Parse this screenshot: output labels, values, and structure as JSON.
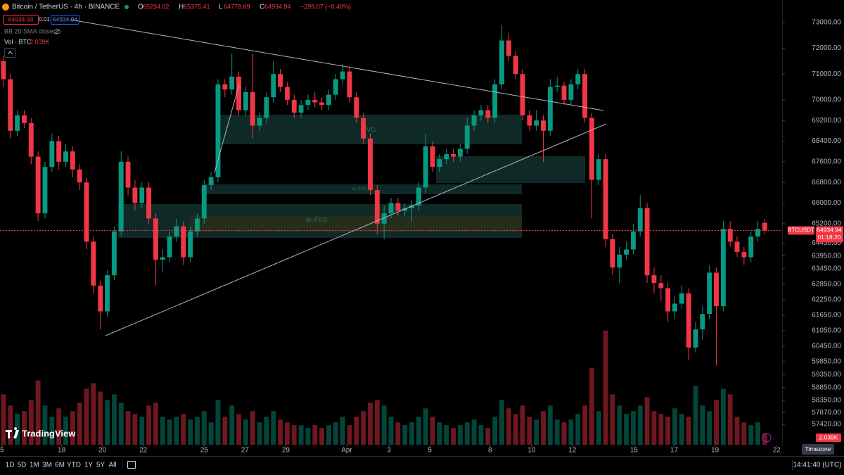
{
  "header": {
    "symbol": "Bitcoin / TetherUS · 4h · BINANCE",
    "ohlc_prefixes": [
      "O",
      "H",
      "L",
      "C"
    ],
    "change": "−299.07 (−0.46%)",
    "bid": "64934.93",
    "spread": "0.01",
    "ask": "64934.94",
    "indicator": "BB 20 SMA close 2",
    "volume_title": "Vol · BTC"
  },
  "price_tag": {
    "symbol": "BTCUSDT",
    "countdown": "01:18:20"
  },
  "logo": "TradingView",
  "toolbar": {
    "ranges": [
      "1D",
      "5D",
      "1M",
      "3M",
      "6M",
      "YTD",
      "1Y",
      "5Y",
      "All"
    ],
    "clock": "14:41:40 (UTC)",
    "tooltip": "Timezone"
  },
  "chart_data": {
    "type": "candlestick",
    "up_color": "#089981",
    "down_color": "#f23645",
    "ylim": [
      56630,
      73870
    ],
    "yticks": [
      {
        "value": 73000,
        "label": "73000.00"
      },
      {
        "value": 72000,
        "label": "72000.00"
      },
      {
        "value": 71000,
        "label": "71000.00"
      },
      {
        "value": 70000,
        "label": "70000.00"
      },
      {
        "value": 69200,
        "label": "69200.00"
      },
      {
        "value": 68400,
        "label": "68400.00"
      },
      {
        "value": 67600,
        "label": "67600.00"
      },
      {
        "value": 66800,
        "label": "66800.00"
      },
      {
        "value": 66000,
        "label": "66000.00"
      },
      {
        "value": 65200,
        "label": "65200.00"
      },
      {
        "value": 64450,
        "label": "64450.00"
      },
      {
        "value": 63950,
        "label": "63950.00"
      },
      {
        "value": 63450,
        "label": "63450.00"
      },
      {
        "value": 62850,
        "label": "62850.00"
      },
      {
        "value": 62250,
        "label": "62250.00"
      },
      {
        "value": 61650,
        "label": "61650.00"
      },
      {
        "value": 61050,
        "label": "61050.00"
      },
      {
        "value": 60450,
        "label": "60450.00"
      },
      {
        "value": 59850,
        "label": "59850.00"
      },
      {
        "value": 59350,
        "label": "59350.00"
      },
      {
        "value": 58850,
        "label": "58850.00"
      },
      {
        "value": 58350,
        "label": "58350.00"
      },
      {
        "value": 57870,
        "label": "57870.00"
      },
      {
        "value": 57420,
        "label": "57420.00"
      }
    ],
    "xlim": [
      -0.5,
      112.5
    ],
    "xticks": [
      {
        "value": -0.2,
        "label": "5"
      },
      {
        "value": 8.4,
        "label": "18"
      },
      {
        "value": 14.3,
        "label": "20"
      },
      {
        "value": 20.2,
        "label": "22"
      },
      {
        "value": 29.0,
        "label": "25"
      },
      {
        "value": 34.9,
        "label": "27"
      },
      {
        "value": 40.8,
        "label": "29"
      },
      {
        "value": 49.6,
        "label": "Apr"
      },
      {
        "value": 55.7,
        "label": "3"
      },
      {
        "value": 61.6,
        "label": "5"
      },
      {
        "value": 70.3,
        "label": "8"
      },
      {
        "value": 76.3,
        "label": "10"
      },
      {
        "value": 82.2,
        "label": "12"
      },
      {
        "value": 91.1,
        "label": "15"
      },
      {
        "value": 96.9,
        "label": "17"
      },
      {
        "value": 102.8,
        "label": "19"
      },
      {
        "value": 111.7,
        "label": "22"
      }
    ],
    "volume_lim": [
      0,
      22000
    ],
    "last_volume_label": "2.039K",
    "annotations": [
      "FVG",
      "4h FVG",
      "4h FVG"
    ],
    "ohlc": [
      [
        71500,
        71700,
        70500,
        70800
      ],
      [
        70800,
        71000,
        68500,
        68800
      ],
      [
        68800,
        69600,
        68600,
        69400
      ],
      [
        69400,
        69600,
        68900,
        69100
      ],
      [
        69100,
        69300,
        67500,
        67800
      ],
      [
        67800,
        68000,
        65300,
        65600
      ],
      [
        65600,
        67600,
        65400,
        67400
      ],
      [
        67400,
        68700,
        67200,
        68400
      ],
      [
        68400,
        68600,
        67300,
        67600
      ],
      [
        67600,
        68300,
        67400,
        68000
      ],
      [
        68000,
        68200,
        67000,
        67300
      ],
      [
        67300,
        67500,
        66500,
        66800
      ],
      [
        66800,
        67000,
        64200,
        64500
      ],
      [
        64500,
        64700,
        62500,
        62800
      ],
      [
        62800,
        63000,
        61100,
        61800
      ],
      [
        61800,
        63400,
        61600,
        63200
      ],
      [
        63200,
        65100,
        63000,
        64900
      ],
      [
        64900,
        68000,
        64700,
        67600
      ],
      [
        67600,
        67800,
        66300,
        66600
      ],
      [
        66600,
        66900,
        65700,
        66000
      ],
      [
        66000,
        66800,
        65800,
        66600
      ],
      [
        66600,
        66800,
        65200,
        65400
      ],
      [
        65400,
        65600,
        62800,
        63800
      ],
      [
        63800,
        64200,
        63300,
        63900
      ],
      [
        63900,
        64900,
        63700,
        64700
      ],
      [
        64700,
        65400,
        64500,
        65100
      ],
      [
        65100,
        65300,
        63600,
        63900
      ],
      [
        63900,
        65100,
        63700,
        64900
      ],
      [
        64900,
        65600,
        64700,
        65400
      ],
      [
        65400,
        66900,
        65200,
        66700
      ],
      [
        66700,
        67200,
        66500,
        67000
      ],
      [
        67000,
        70800,
        66800,
        70600
      ],
      [
        70600,
        70800,
        70100,
        70400
      ],
      [
        70400,
        71800,
        70200,
        70900
      ],
      [
        70900,
        71100,
        69400,
        69600
      ],
      [
        69600,
        70500,
        69400,
        70300
      ],
      [
        70300,
        71800,
        68500,
        69000
      ],
      [
        69000,
        69500,
        68800,
        69300
      ],
      [
        69300,
        70300,
        69100,
        70100
      ],
      [
        70100,
        71500,
        69900,
        71000
      ],
      [
        71000,
        71200,
        70300,
        70500
      ],
      [
        70500,
        70700,
        69800,
        70000
      ],
      [
        70000,
        70200,
        69300,
        69500
      ],
      [
        69500,
        70000,
        69300,
        69800
      ],
      [
        69800,
        70200,
        69600,
        70000
      ],
      [
        70000,
        70300,
        69700,
        69900
      ],
      [
        69900,
        70100,
        69600,
        69800
      ],
      [
        69800,
        70400,
        69600,
        70200
      ],
      [
        70200,
        71000,
        70000,
        70800
      ],
      [
        70800,
        71400,
        70600,
        71100
      ],
      [
        71100,
        71300,
        69900,
        70100
      ],
      [
        70100,
        70300,
        69100,
        69300
      ],
      [
        69300,
        69500,
        68300,
        68500
      ],
      [
        68500,
        68700,
        66300,
        66500
      ],
      [
        66500,
        66700,
        64800,
        65200
      ],
      [
        65200,
        65900,
        64600,
        65600
      ],
      [
        65600,
        66200,
        65400,
        66000
      ],
      [
        66000,
        66200,
        65500,
        65700
      ],
      [
        65700,
        66000,
        65500,
        65800
      ],
      [
        65800,
        66100,
        65300,
        65900
      ],
      [
        65900,
        66800,
        65700,
        66600
      ],
      [
        66600,
        68700,
        66400,
        68200
      ],
      [
        68200,
        68400,
        67200,
        67400
      ],
      [
        67400,
        67900,
        67200,
        67700
      ],
      [
        67700,
        68100,
        67500,
        67900
      ],
      [
        67900,
        68100,
        67600,
        67800
      ],
      [
        67800,
        68300,
        67600,
        68100
      ],
      [
        68100,
        69300,
        67900,
        69000
      ],
      [
        69000,
        69600,
        68800,
        69400
      ],
      [
        69400,
        69800,
        69200,
        69600
      ],
      [
        69600,
        69800,
        69100,
        69300
      ],
      [
        69300,
        70800,
        69100,
        70600
      ],
      [
        70600,
        72900,
        70400,
        72300
      ],
      [
        72300,
        72600,
        71500,
        71700
      ],
      [
        71700,
        71900,
        70800,
        71000
      ],
      [
        71000,
        71200,
        69200,
        69400
      ],
      [
        69400,
        69600,
        68800,
        69000
      ],
      [
        69000,
        69600,
        68800,
        69200
      ],
      [
        69200,
        69400,
        67600,
        68800
      ],
      [
        68800,
        70800,
        68600,
        70500
      ],
      [
        70500,
        70900,
        70300,
        70550
      ],
      [
        70550,
        70700,
        69800,
        70000
      ],
      [
        70000,
        70800,
        69800,
        70600
      ],
      [
        70600,
        71200,
        70400,
        71000
      ],
      [
        71000,
        71200,
        69100,
        69300
      ],
      [
        69300,
        69500,
        65400,
        66900
      ],
      [
        66900,
        67900,
        66700,
        67700
      ],
      [
        67700,
        67900,
        64300,
        64600
      ],
      [
        64600,
        64800,
        63200,
        63500
      ],
      [
        63500,
        64300,
        62900,
        64000
      ],
      [
        64000,
        64500,
        63800,
        64200
      ],
      [
        64200,
        65200,
        64000,
        64900
      ],
      [
        64900,
        66300,
        64700,
        65800
      ],
      [
        65800,
        66000,
        62900,
        63200
      ],
      [
        63200,
        63500,
        62500,
        62900
      ],
      [
        62900,
        63200,
        62200,
        62700
      ],
      [
        62700,
        62900,
        61400,
        61800
      ],
      [
        61800,
        62400,
        61500,
        62100
      ],
      [
        62100,
        62800,
        61900,
        62500
      ],
      [
        62500,
        62700,
        59900,
        60400
      ],
      [
        60400,
        61400,
        60200,
        61100
      ],
      [
        61100,
        62000,
        60700,
        61700
      ],
      [
        61700,
        63600,
        61500,
        63300
      ],
      [
        63300,
        63500,
        59700,
        62000
      ],
      [
        62000,
        65300,
        61800,
        65000
      ],
      [
        65000,
        65300,
        64300,
        64500
      ],
      [
        64500,
        64700,
        63900,
        64100
      ],
      [
        64100,
        64300,
        63600,
        63900
      ],
      [
        63900,
        64900,
        63700,
        64700
      ],
      [
        64700,
        65300,
        64500,
        65000
      ],
      [
        65234.02,
        65375.41,
        64778.69,
        64934.94
      ]
    ],
    "volume": [
      9000,
      7000,
      5500,
      6000,
      8000,
      11500,
      7000,
      5000,
      6500,
      5000,
      6000,
      7500,
      10000,
      11000,
      9500,
      8000,
      9000,
      7500,
      6000,
      5500,
      5000,
      7000,
      7500,
      5000,
      4500,
      5000,
      5500,
      4500,
      5000,
      6000,
      4000,
      8000,
      5000,
      7000,
      5500,
      4500,
      6000,
      4000,
      5000,
      6000,
      4500,
      4000,
      3500,
      3500,
      3000,
      3500,
      3000,
      3500,
      4000,
      5000,
      3500,
      5000,
      6000,
      7500,
      8000,
      7000,
      5000,
      4000,
      3500,
      4000,
      5000,
      6500,
      5000,
      4000,
      3500,
      3000,
      3500,
      4000,
      4500,
      3500,
      3000,
      5000,
      8000,
      6500,
      5500,
      7000,
      5000,
      4500,
      6000,
      7000,
      4500,
      4000,
      4500,
      5500,
      7000,
      13700,
      6000,
      20400,
      9000,
      7000,
      5500,
      6000,
      7000,
      8500,
      6000,
      5500,
      5000,
      6500,
      5500,
      5000,
      10500,
      7000,
      6000,
      8000,
      10000,
      9000,
      5000,
      4000,
      3500,
      4000,
      2039
    ]
  }
}
